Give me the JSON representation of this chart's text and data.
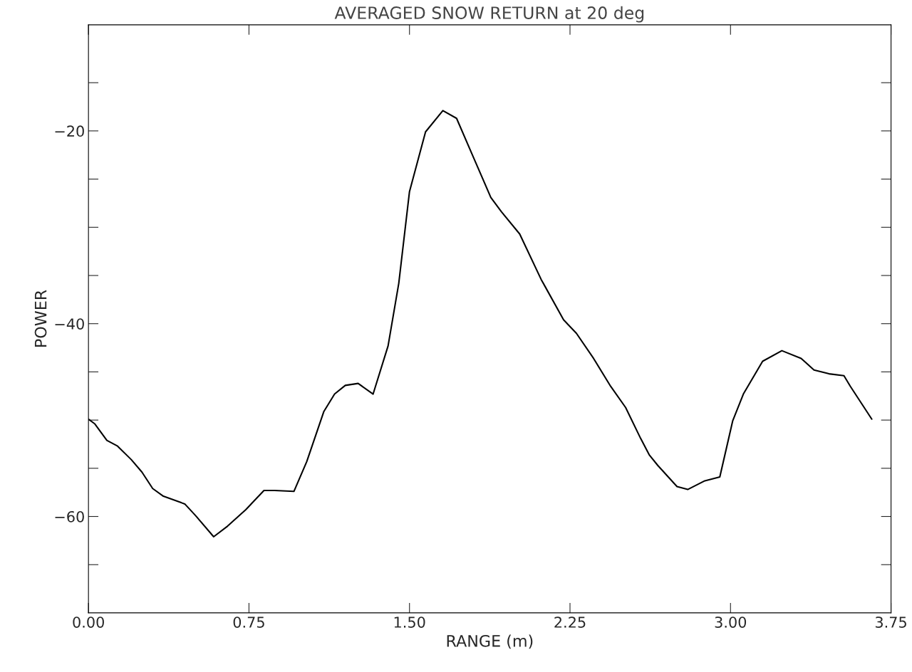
{
  "chart_data": {
    "type": "line",
    "title": "AVERAGED SNOW RETURN at 20 deg",
    "xlabel": "RANGE (m)",
    "ylabel": "POWER",
    "xlim": [
      0,
      3.75
    ],
    "ylim": [
      -70,
      -9
    ],
    "xticks": [
      {
        "value": 0,
        "label": "0.00"
      },
      {
        "value": 0.75,
        "label": "0.75"
      },
      {
        "value": 1.5,
        "label": "1.50"
      },
      {
        "value": 2.25,
        "label": "2.25"
      },
      {
        "value": 3.0,
        "label": "3.00"
      },
      {
        "value": 3.75,
        "label": "3.75"
      }
    ],
    "yticks": [
      {
        "value": -15,
        "label": null
      },
      {
        "value": -20,
        "label": "−20"
      },
      {
        "value": -25,
        "label": null
      },
      {
        "value": -30,
        "label": null
      },
      {
        "value": -35,
        "label": null
      },
      {
        "value": -40,
        "label": "−40"
      },
      {
        "value": -45,
        "label": null
      },
      {
        "value": -50,
        "label": null
      },
      {
        "value": -55,
        "label": null
      },
      {
        "value": -60,
        "label": "−60"
      },
      {
        "value": -65,
        "label": null
      }
    ],
    "grid": false,
    "legend": false,
    "marker": "none",
    "line_style": "solid",
    "series": [
      {
        "color": "#000000",
        "x": [
          0,
          0.03,
          0.086,
          0.136,
          0.2,
          0.25,
          0.3,
          0.35,
          0.45,
          0.5,
          0.585,
          0.65,
          0.735,
          0.82,
          0.87,
          0.96,
          1.02,
          1.1,
          1.15,
          1.2,
          1.26,
          1.33,
          1.4,
          1.45,
          1.5,
          1.575,
          1.656,
          1.72,
          1.8,
          1.88,
          1.93,
          2.015,
          2.115,
          2.22,
          2.28,
          2.36,
          2.44,
          2.51,
          2.58,
          2.62,
          2.66,
          2.75,
          2.8,
          2.88,
          2.95,
          3.01,
          3.06,
          3.15,
          3.24,
          3.33,
          3.39,
          3.46,
          3.53,
          3.56,
          3.66
        ],
        "values": [
          -49.9,
          -50.4,
          -52.1,
          -52.7,
          -54.1,
          -55.4,
          -57.1,
          -57.9,
          -58.7,
          -59.9,
          -62.1,
          -61.0,
          -59.3,
          -57.3,
          -57.3,
          -57.4,
          -54.3,
          -49.1,
          -47.3,
          -46.4,
          -46.2,
          -47.3,
          -42.3,
          -35.8,
          -26.3,
          -20.1,
          -17.9,
          -18.7,
          -22.8,
          -26.9,
          -28.4,
          -30.7,
          -35.4,
          -39.6,
          -41.0,
          -43.6,
          -46.5,
          -48.7,
          -51.9,
          -53.6,
          -54.7,
          -56.9,
          -57.2,
          -56.3,
          -55.9,
          -50.1,
          -47.3,
          -43.9,
          -42.8,
          -43.6,
          -44.8,
          -45.2,
          -45.4,
          -46.5,
          -49.9
        ]
      }
    ]
  }
}
